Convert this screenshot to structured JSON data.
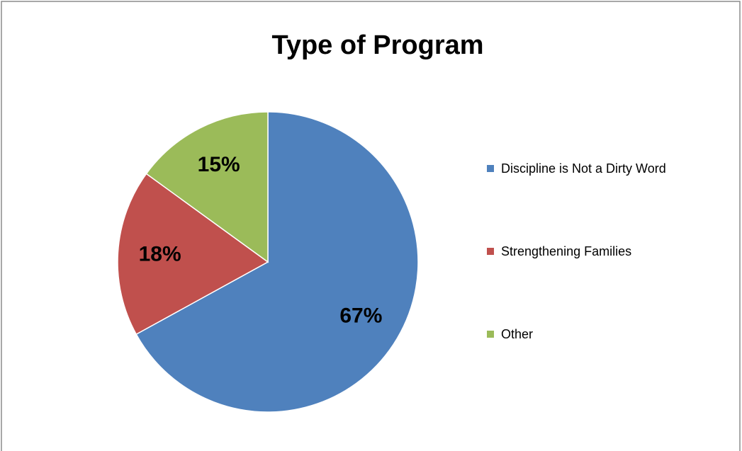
{
  "chart_data": {
    "type": "pie",
    "title": "Type of Program",
    "categories": [
      "Discipline is Not a Dirty Word",
      "Strengthening Families",
      "Other"
    ],
    "values": [
      67,
      18,
      15
    ],
    "value_labels": [
      "67%",
      "18%",
      "15%"
    ],
    "colors": [
      "#4f81bd",
      "#c0504d",
      "#9bbb59"
    ],
    "legend": "right"
  }
}
